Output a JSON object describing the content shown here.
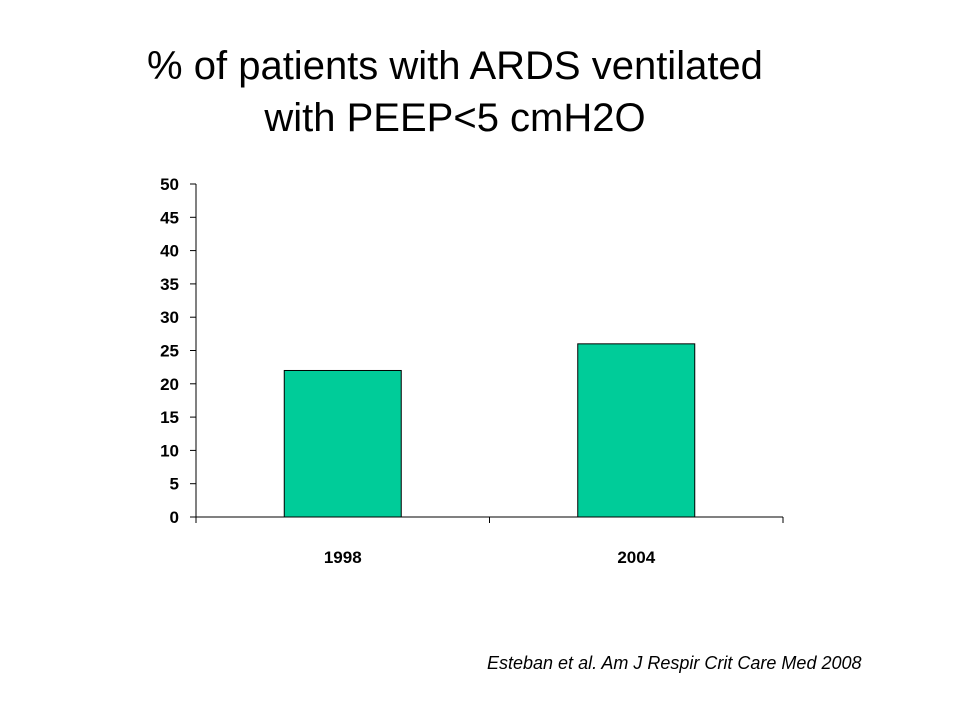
{
  "slide": {
    "title_line1": "% of patients with ARDS ventilated",
    "title_line2": "with PEEP<5 cmH2O",
    "citation": "Esteban et al. Am J Respir Crit Care Med 2008"
  },
  "chart_data": {
    "type": "bar",
    "categories": [
      "1998",
      "2004"
    ],
    "values": [
      22,
      26
    ],
    "ylim": [
      0,
      50
    ],
    "yticks": [
      "0",
      "5",
      "10",
      "15",
      "20",
      "25",
      "30",
      "35",
      "40",
      "45",
      "50"
    ],
    "grid": false,
    "bar_color": "#00cc99",
    "bar_outline_color": "#000000"
  }
}
